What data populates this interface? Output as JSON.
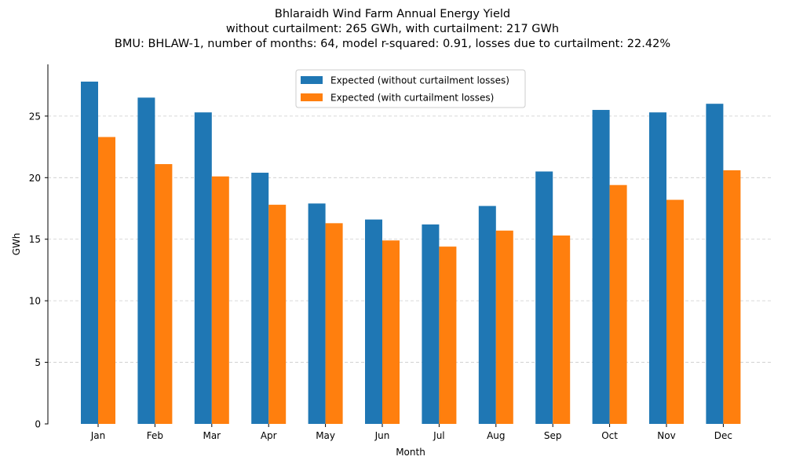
{
  "chart_data": {
    "type": "bar",
    "title": "Bhlaraidh Wind Farm Annual Energy Yield",
    "subtitle_lines": [
      "without curtailment: 265 GWh, with curtailment: 217 GWh",
      "BMU: BHLAW-1, number of months: 64, model r-squared: 0.91, losses due to curtailment: 22.42%"
    ],
    "xlabel": "Month",
    "ylabel": "GWh",
    "categories": [
      "Jan",
      "Feb",
      "Mar",
      "Apr",
      "May",
      "Jun",
      "Jul",
      "Aug",
      "Sep",
      "Oct",
      "Nov",
      "Dec"
    ],
    "series": [
      {
        "name": "Expected (without curtailment losses)",
        "color": "#1f77b4",
        "values": [
          27.8,
          26.5,
          25.3,
          20.4,
          17.9,
          16.6,
          16.2,
          17.7,
          20.5,
          25.5,
          25.3,
          26.0
        ]
      },
      {
        "name": "Expected (with curtailment losses)",
        "color": "#ff7f0e",
        "values": [
          23.3,
          21.1,
          20.1,
          17.8,
          16.3,
          14.9,
          14.4,
          15.7,
          15.3,
          19.4,
          18.2,
          20.6
        ]
      }
    ],
    "yticks": [
      0,
      5,
      10,
      15,
      20,
      25
    ],
    "ylim": [
      0,
      29.2
    ],
    "grid": "horizontal-dashed",
    "legend_position": "top-center"
  }
}
